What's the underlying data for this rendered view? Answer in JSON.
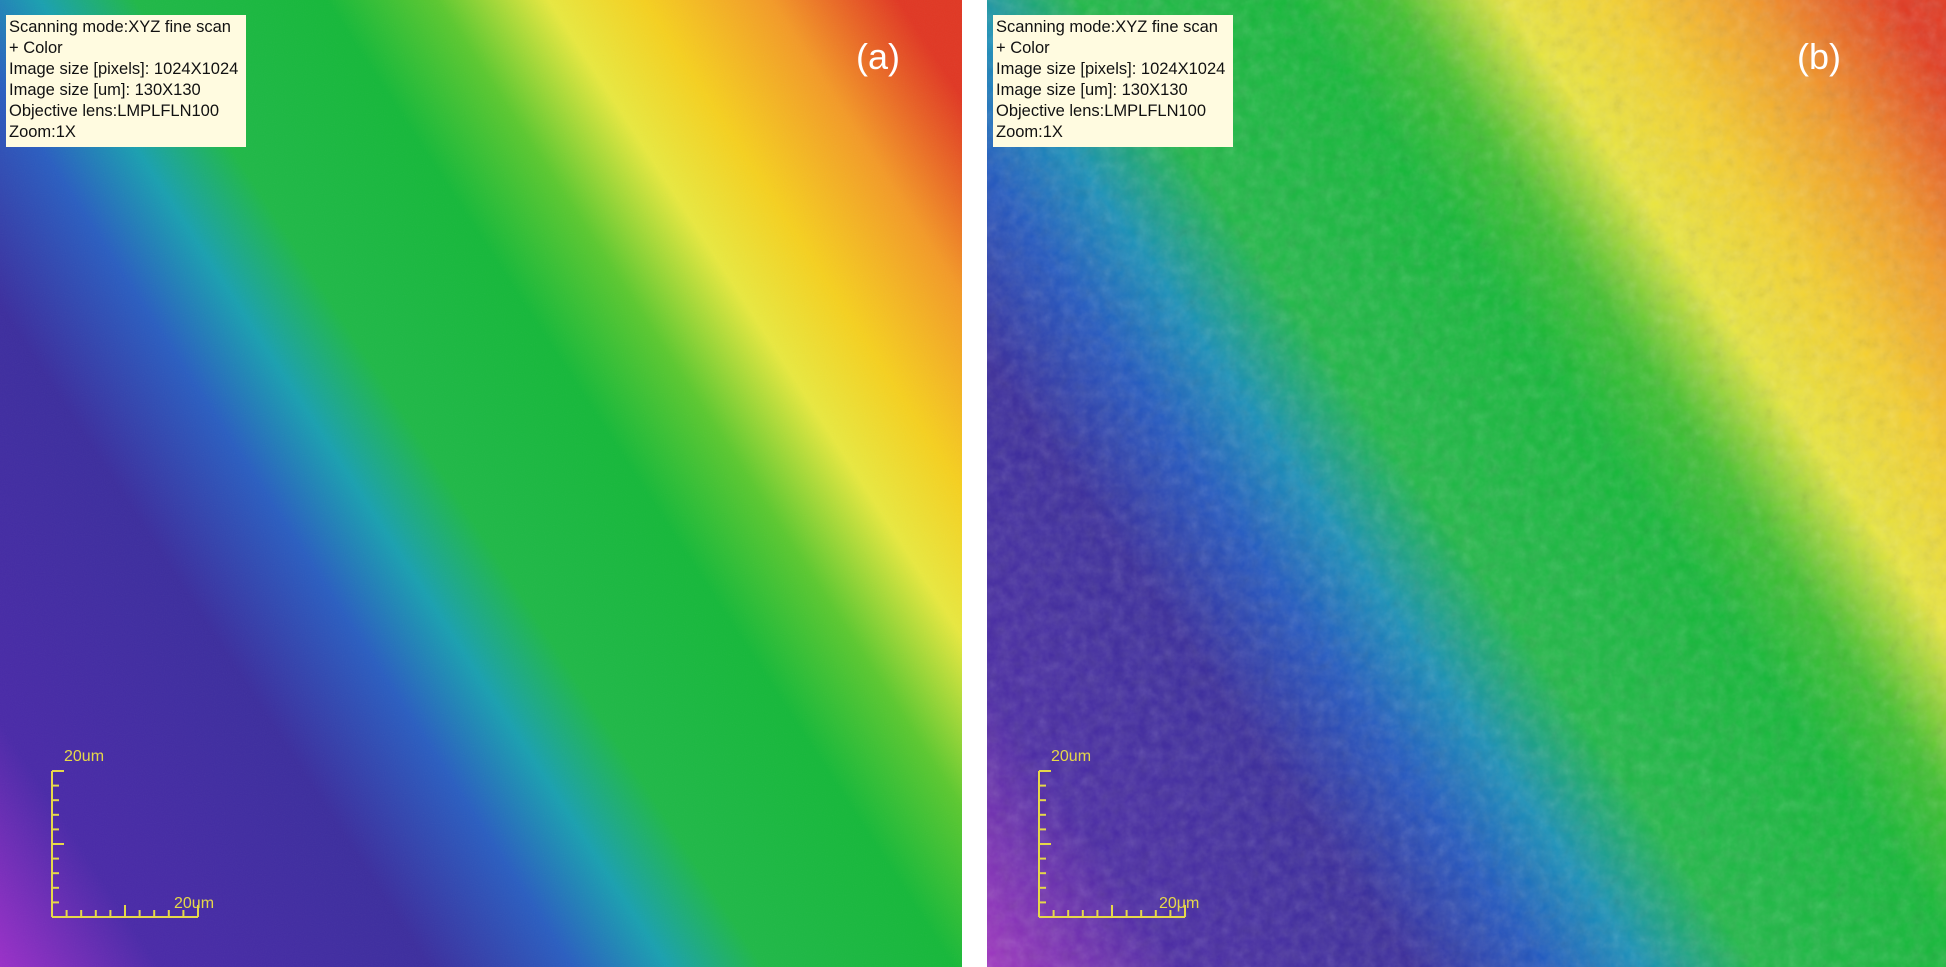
{
  "panels": [
    {
      "label": "(a)",
      "info": [
        "Scanning mode:XYZ fine scan",
        "+ Color",
        "Image size [pixels]: 1024X1024",
        "Image size [um]: 130X130",
        "Objective lens:LMPLFLN100",
        "Zoom:1X"
      ],
      "scale_bar": {
        "vertical_label": "20um",
        "horizontal_label": "20um"
      }
    },
    {
      "label": "(b)",
      "info": [
        "Scanning mode:XYZ fine scan",
        "+ Color",
        "Image size [pixels]: 1024X1024",
        "Image size [um]: 130X130",
        "Objective lens:LMPLFLN100",
        "Zoom:1X"
      ],
      "scale_bar": {
        "vertical_label": "20um",
        "horizontal_label": "20μm"
      }
    }
  ]
}
